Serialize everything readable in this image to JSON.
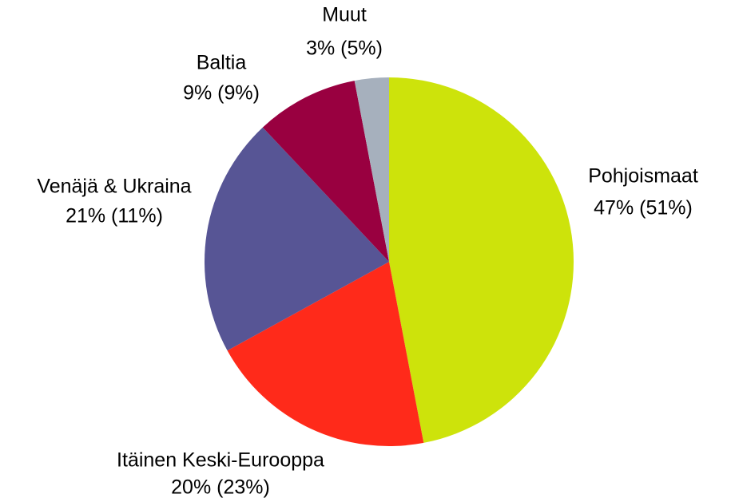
{
  "chart_data": {
    "type": "pie",
    "categories": [
      "Pohjoismaat",
      "Itäinen Keski-Eurooppa",
      "Venäjä & Ukraina",
      "Baltia",
      "Muut"
    ],
    "values": [
      47,
      20,
      21,
      9,
      3
    ],
    "value_labels": [
      "47% (51%)",
      "20% (23%)",
      "21% (11%)",
      "9% (9%)",
      "3% (5%)"
    ],
    "colors": [
      "#cde30b",
      "#ff2a1a",
      "#575595",
      "#990040",
      "#a6b0bd"
    ]
  }
}
